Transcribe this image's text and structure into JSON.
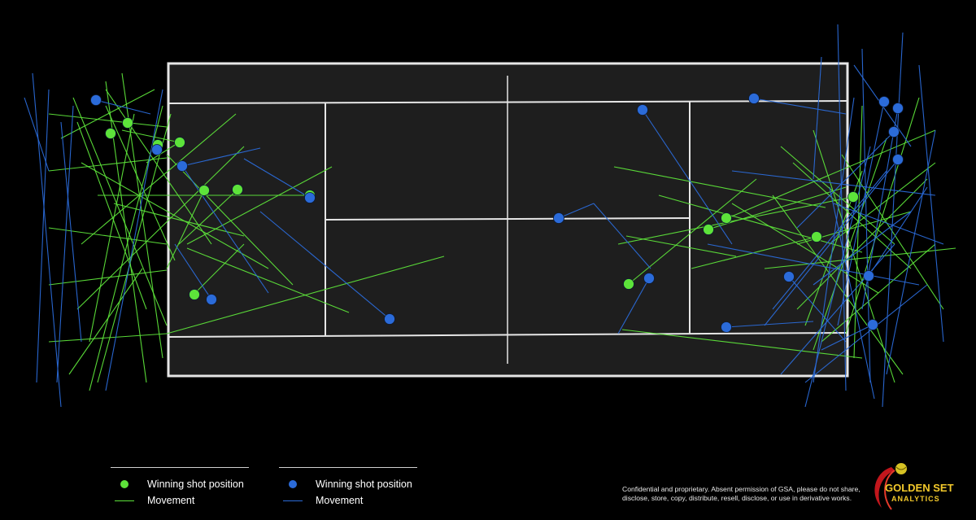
{
  "colors": {
    "background": "#000000",
    "court": "#1e1e1e",
    "court_lines": "#e6e6e6",
    "green": "#5de33a",
    "blue": "#2b6bd9"
  },
  "chart_data": {
    "type": "scatter",
    "description_of_axes": "",
    "series": [
      {
        "key": "green",
        "color": "#5de33a",
        "winning_shot_positions": [
          [
            136,
            164
          ],
          [
            157,
            151
          ],
          [
            194,
            178
          ],
          [
            221,
            175
          ],
          [
            251,
            234
          ],
          [
            292,
            233
          ],
          [
            381,
            240
          ],
          [
            239,
            362
          ],
          [
            773,
            349
          ],
          [
            871,
            282
          ],
          [
            893,
            268
          ],
          [
            1004,
            291
          ],
          [
            1049,
            242
          ]
        ],
        "movement_segments": [
          [
            [
              60,
              140
            ],
            [
              205,
              156
            ]
          ],
          [
            [
              60,
              210
            ],
            [
              205,
              194
            ]
          ],
          [
            [
              60,
              280
            ],
            [
              205,
              300
            ]
          ],
          [
            [
              60,
              350
            ],
            [
              205,
              332
            ]
          ],
          [
            [
              60,
              420
            ],
            [
              205,
              410
            ]
          ],
          [
            [
              90,
              120
            ],
            [
              205,
              400
            ]
          ],
          [
            [
              110,
              480
            ],
            [
              200,
              130
            ]
          ],
          [
            [
              130,
              100
            ],
            [
              180,
              470
            ]
          ],
          [
            [
              150,
              90
            ],
            [
              200,
              440
            ]
          ],
          [
            [
              100,
              300
            ],
            [
              290,
              140
            ]
          ],
          [
            [
              95,
              380
            ],
            [
              300,
              180
            ]
          ],
          [
            [
              140,
              250
            ],
            [
              300,
              290
            ]
          ],
          [
            [
              205,
              410
            ],
            [
              546,
              315
            ]
          ],
          [
            [
              230,
              300
            ],
            [
              408,
              205
            ]
          ],
          [
            [
              230,
              305
            ],
            [
              429,
              384
            ]
          ],
          [
            [
              205,
              190
            ],
            [
              360,
              350
            ]
          ],
          [
            [
              240,
              360
            ],
            [
              300,
              300
            ]
          ],
          [
            [
              120,
              240
            ],
            [
              381,
              240
            ]
          ],
          [
            [
              75,
              170
            ],
            [
              190,
              110
            ]
          ],
          [
            [
              85,
              460
            ],
            [
              175,
              330
            ]
          ],
          [
            [
              165,
              140
            ],
            [
              110,
              420
            ]
          ],
          [
            [
              180,
              380
            ],
            [
              95,
              150
            ]
          ],
          [
            [
              210,
              140
            ],
            [
              120,
              470
            ]
          ],
          [
            [
              215,
              320
            ],
            [
              130,
              130
            ]
          ],
          [
            [
              180,
              200
            ],
            [
              220,
              175
            ]
          ],
          [
            [
              150,
              160
            ],
            [
              221,
              175
            ]
          ],
          [
            [
              251,
              234
            ],
            [
              205,
              330
            ]
          ],
          [
            [
              292,
              233
            ],
            [
              220,
              300
            ]
          ],
          [
            [
              130,
              110
            ],
            [
              260,
              300
            ]
          ],
          [
            [
              100,
              200
            ],
            [
              330,
              330
            ]
          ],
          [
            [
              773,
              349
            ],
            [
              930,
              220
            ]
          ],
          [
            [
              755,
              205
            ],
            [
              1015,
              255
            ]
          ],
          [
            [
              765,
              405
            ],
            [
              1060,
              440
            ]
          ],
          [
            [
              810,
              240
            ],
            [
              1060,
              310
            ]
          ],
          [
            [
              1150,
              160
            ],
            [
              890,
              270
            ]
          ],
          [
            [
              1175,
              305
            ],
            [
              940,
              330
            ]
          ],
          [
            [
              950,
              240
            ],
            [
              1110,
              460
            ]
          ],
          [
            [
              975,
              200
            ],
            [
              1120,
              330
            ]
          ],
          [
            [
              1000,
              160
            ],
            [
              1100,
              470
            ]
          ],
          [
            [
              1020,
              300
            ],
            [
              1150,
              200
            ]
          ],
          [
            [
              1060,
              130
            ],
            [
              1050,
              440
            ]
          ],
          [
            [
              1090,
              170
            ],
            [
              1000,
              430
            ]
          ],
          [
            [
              1120,
              260
            ],
            [
              980,
              300
            ]
          ],
          [
            [
              980,
              380
            ],
            [
              1140,
              220
            ]
          ],
          [
            [
              1035,
              190
            ],
            [
              1160,
              380
            ]
          ],
          [
            [
              760,
              300
            ],
            [
              1049,
              242
            ]
          ],
          [
            [
              850,
              330
            ],
            [
              1004,
              291
            ]
          ],
          [
            [
              900,
              250
            ],
            [
              1080,
              360
            ]
          ],
          [
            [
              1130,
              120
            ],
            [
              1040,
              410
            ]
          ],
          [
            [
              1100,
              300
            ],
            [
              960,
              180
            ]
          ],
          [
            [
              870,
              282
            ],
            [
              1040,
              230
            ]
          ],
          [
            [
              1010,
              420
            ],
            [
              1150,
              300
            ]
          ],
          [
            [
              770,
              290
            ],
            [
              905,
              315
            ]
          ],
          [
            [
              1060,
              210
            ],
            [
              990,
              400
            ]
          ]
        ]
      },
      {
        "key": "blue",
        "color": "#2b6bd9",
        "winning_shot_positions": [
          [
            118,
            123
          ],
          [
            193,
            184
          ],
          [
            224,
            204
          ],
          [
            381,
            243
          ],
          [
            260,
            368
          ],
          [
            479,
            392
          ],
          [
            687,
            268
          ],
          [
            790,
            135
          ],
          [
            927,
            121
          ],
          [
            798,
            342
          ],
          [
            893,
            402
          ],
          [
            970,
            340
          ],
          [
            1087,
            125
          ],
          [
            1104,
            133
          ],
          [
            1099,
            162
          ],
          [
            1104,
            196
          ],
          [
            1068,
            339
          ],
          [
            1073,
            399
          ]
        ],
        "movement_segments": [
          [
            [
              40,
              90
            ],
            [
              75,
              500
            ]
          ],
          [
            [
              60,
              110
            ],
            [
              45,
              470
            ]
          ],
          [
            [
              30,
              120
            ],
            [
              60,
              210
            ]
          ],
          [
            [
              75,
              150
            ],
            [
              100,
              420
            ]
          ],
          [
            [
              90,
              130
            ],
            [
              70,
              470
            ]
          ],
          [
            [
              200,
              110
            ],
            [
              130,
              480
            ]
          ],
          [
            [
              224,
              204
            ],
            [
              320,
              182
            ]
          ],
          [
            [
              224,
              204
            ],
            [
              330,
              360
            ]
          ],
          [
            [
              479,
              392
            ],
            [
              320,
              260
            ]
          ],
          [
            [
              381,
              243
            ],
            [
              300,
              195
            ]
          ],
          [
            [
              260,
              368
            ],
            [
              215,
              300
            ]
          ],
          [
            [
              118,
              123
            ],
            [
              185,
              140
            ]
          ],
          [
            [
              687,
              268
            ],
            [
              730,
              250
            ]
          ],
          [
            [
              730,
              250
            ],
            [
              800,
              330
            ]
          ],
          [
            [
              790,
              135
            ],
            [
              900,
              300
            ]
          ],
          [
            [
              927,
              121
            ],
            [
              1040,
              140
            ]
          ],
          [
            [
              798,
              342
            ],
            [
              760,
              410
            ]
          ],
          [
            [
              893,
              402
            ],
            [
              1000,
              395
            ]
          ],
          [
            [
              970,
              340
            ],
            [
              1040,
              420
            ]
          ],
          [
            [
              1030,
              30
            ],
            [
              1040,
              480
            ]
          ],
          [
            [
              1060,
              60
            ],
            [
              1070,
              470
            ]
          ],
          [
            [
              1110,
              40
            ],
            [
              1085,
              500
            ]
          ],
          [
            [
              1130,
              80
            ],
            [
              1160,
              420
            ]
          ],
          [
            [
              1150,
              160
            ],
            [
              1090,
              460
            ]
          ],
          [
            [
              1000,
              470
            ],
            [
              1050,
              120
            ]
          ],
          [
            [
              1075,
              490
            ],
            [
              1020,
              230
            ]
          ],
          [
            [
              990,
              500
            ],
            [
              1070,
              180
            ]
          ],
          [
            [
              1120,
              260
            ],
            [
              1000,
              350
            ]
          ],
          [
            [
              1087,
              125
            ],
            [
              1030,
              400
            ]
          ],
          [
            [
              1104,
              133
            ],
            [
              1060,
              380
            ]
          ],
          [
            [
              1099,
              162
            ],
            [
              980,
              280
            ]
          ],
          [
            [
              1104,
              196
            ],
            [
              940,
              400
            ]
          ],
          [
            [
              1068,
              339
            ],
            [
              1140,
              230
            ]
          ],
          [
            [
              1073,
              399
            ],
            [
              1010,
              430
            ]
          ],
          [
            [
              900,
              210
            ],
            [
              1150,
              240
            ]
          ],
          [
            [
              870,
              300
            ],
            [
              1130,
              350
            ]
          ],
          [
            [
              960,
              460
            ],
            [
              1100,
              300
            ]
          ],
          [
            [
              1050,
              80
            ],
            [
              1120,
              180
            ]
          ],
          [
            [
              1090,
              210
            ],
            [
              950,
              380
            ]
          ],
          [
            [
              1025,
              250
            ],
            [
              1160,
              300
            ]
          ],
          [
            [
              1140,
              350
            ],
            [
              990,
              470
            ]
          ],
          [
            [
              1010,
              70
            ],
            [
              1000,
              220
            ]
          ]
        ]
      }
    ],
    "legend": [
      {
        "series": "green",
        "marker_label": "Winning shot position",
        "line_label": "Movement"
      },
      {
        "series": "blue",
        "marker_label": "Winning shot position",
        "line_label": "Movement"
      }
    ],
    "legend_placement": "bottom-left",
    "grid": false
  },
  "legend": {
    "green_marker_label": "Winning shot position",
    "green_line_label": "Movement",
    "blue_marker_label": "Winning shot position",
    "blue_line_label": "Movement"
  },
  "disclaimer": "Confidential and proprietary. Absent permission of GSA, please do not share, disclose, store, copy, distribute, resell, disclose, or use in derivative works.",
  "logo": {
    "line1": "GOLDEN SET",
    "line2": "ANALYTICS"
  }
}
